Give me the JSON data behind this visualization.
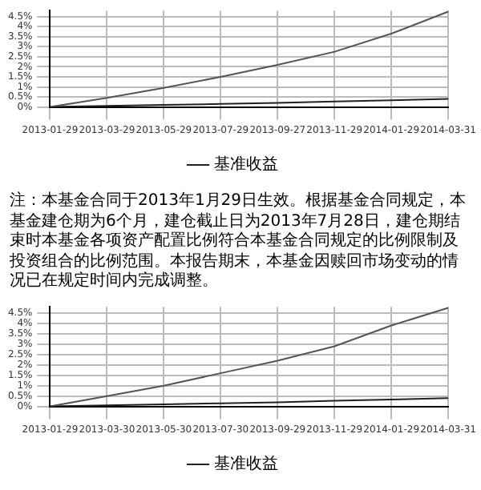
{
  "chart_data": [
    {
      "type": "line",
      "categories": [
        "2013-01-29",
        "2013-03-29",
        "2013-05-29",
        "2013-07-29",
        "2013-09-27",
        "2013-11-29",
        "2014-01-29",
        "2014-03-31"
      ],
      "series": [
        {
          "color": "#555555",
          "values": [
            0,
            0.45,
            0.95,
            1.5,
            2.1,
            2.75,
            3.65,
            4.75
          ]
        },
        {
          "name": "基准收益",
          "color": "#222222",
          "values": [
            0,
            0.05,
            0.1,
            0.15,
            0.2,
            0.27,
            0.33,
            0.4
          ]
        }
      ],
      "ylim": [
        0,
        4.8
      ],
      "yticks": [
        {
          "value": 0,
          "label": "0%"
        },
        {
          "value": 0.5,
          "label": "0.5%"
        },
        {
          "value": 1,
          "label": "1%"
        },
        {
          "value": 1.5,
          "label": "1.5%"
        },
        {
          "value": 2,
          "label": "2%"
        },
        {
          "value": 2.5,
          "label": "2.5%"
        },
        {
          "value": 3,
          "label": "3%"
        },
        {
          "value": 3.5,
          "label": "3.5%"
        },
        {
          "value": 4,
          "label": "4%"
        },
        {
          "value": 4.5,
          "label": "4.5%"
        }
      ],
      "grid": true,
      "legend": "bottom"
    },
    {
      "type": "other",
      "annotations": [
        "注：本基金合同于2013年1月29日生效。根据基金合同规定，本基金建仓期为6个月，建仓截止日为2013年7月28日，建仓期结束时本基金各项资产配置比例符合本基金合同规定的比例限制及投资组合的比例范围。本报告期末，本基金因赎回市场变动的情况已在规定时间内完成调整。"
      ]
    },
    {
      "type": "line",
      "categories": [
        "2013-01-29",
        "2013-03-30",
        "2013-05-30",
        "2013-07-30",
        "2013-09-29",
        "2013-11-29",
        "2014-01-29",
        "2014-03-31"
      ],
      "series": [
        {
          "color": "#555555",
          "values": [
            0,
            0.5,
            1.0,
            1.6,
            2.2,
            2.9,
            3.9,
            4.75
          ]
        },
        {
          "name": "基准收益",
          "color": "#222222",
          "values": [
            0,
            0.05,
            0.1,
            0.15,
            0.2,
            0.27,
            0.33,
            0.4
          ]
        }
      ],
      "ylim": [
        0,
        4.8
      ],
      "yticks": [
        {
          "value": 0,
          "label": "0%"
        },
        {
          "value": 0.5,
          "label": "0.5%"
        },
        {
          "value": 1,
          "label": "1%"
        },
        {
          "value": 1.5,
          "label": "1.5%"
        },
        {
          "value": 2,
          "label": "2%"
        },
        {
          "value": 2.5,
          "label": "2.5%"
        },
        {
          "value": 3,
          "label": "3%"
        },
        {
          "value": 3.5,
          "label": "3.5%"
        },
        {
          "value": 4,
          "label": "4%"
        },
        {
          "value": 4.5,
          "label": "4.5%"
        }
      ],
      "grid": true,
      "legend": "bottom"
    }
  ]
}
